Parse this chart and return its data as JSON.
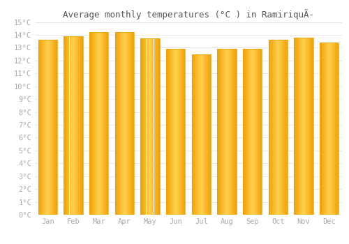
{
  "title": "Average monthly temperatures (°C ) in RamiriquÃ­",
  "months": [
    "Jan",
    "Feb",
    "Mar",
    "Apr",
    "May",
    "Jun",
    "Jul",
    "Aug",
    "Sep",
    "Oct",
    "Nov",
    "Dec"
  ],
  "values": [
    13.6,
    13.9,
    14.2,
    14.2,
    13.7,
    12.9,
    12.5,
    12.9,
    12.9,
    13.6,
    13.8,
    13.4
  ],
  "bar_color": "#FFA500",
  "bar_edge_color": "#CC8800",
  "background_color": "#FFFFFF",
  "grid_color": "#DDDDDD",
  "ylim": [
    0,
    15
  ],
  "ytick_step": 1,
  "title_fontsize": 9,
  "tick_fontsize": 7.5,
  "tick_color": "#AAAAAA",
  "bar_width": 0.75
}
